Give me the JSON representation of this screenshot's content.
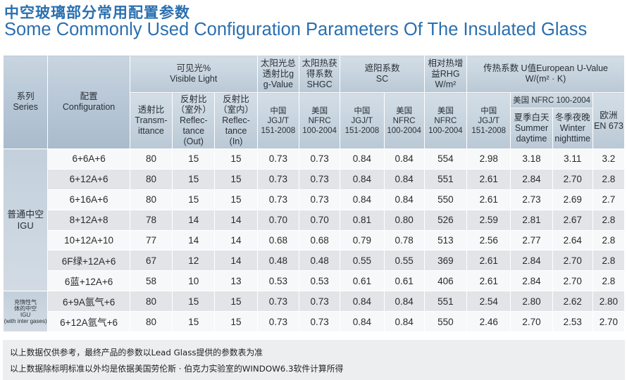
{
  "title_cn": "中空玻璃部分常用配置参数",
  "title_en": "Some Commonly Used Configuration Parameters Of The Insulated Glass",
  "header": {
    "series": [
      "系列",
      "Series"
    ],
    "configuration": [
      "配置",
      "Configuration"
    ],
    "visible_light": [
      "可见光%",
      "Visible Light"
    ],
    "solar_total": [
      "太阳光总",
      "透射比g",
      "g-Value"
    ],
    "solar_heat": [
      "太阳热获",
      "得系数",
      "SHGC"
    ],
    "shading": [
      "遮阳系数",
      "SC"
    ],
    "rhg": [
      "相对热增",
      "益RHG",
      "W/m²"
    ],
    "u_value": [
      "传热系数 U值European U-Value",
      "W/(m² · K)"
    ],
    "transmittance": [
      "透射比",
      "Transm-",
      "ittance"
    ],
    "reflectance_out": [
      "反射比",
      "（室外）",
      "Reflec-",
      "tance",
      "(Out)"
    ],
    "reflectance_in": [
      "反射比",
      "（室内）",
      "Reflec-",
      "tance",
      "(In)"
    ],
    "china_std": [
      "中国",
      "JGJ/T",
      "151-2008"
    ],
    "usa_std": [
      "美国",
      "NFRC",
      "100-2004"
    ],
    "nfrc_group": "美国 NFRC 100-2004",
    "summer": [
      "夏季白天",
      "Summer",
      "daytime"
    ],
    "winter": [
      "冬季夜晚",
      "Winter",
      "nighttime"
    ],
    "europe": [
      "欧洲",
      "EN 673"
    ]
  },
  "groups": {
    "igu": [
      "普通中空",
      "IGU"
    ],
    "gas": [
      "充惰性气",
      "体的中空",
      "IGU",
      "(with inter gases)"
    ]
  },
  "rows": [
    {
      "config": "6+6A+6",
      "vals": [
        "80",
        "15",
        "15",
        "0.73",
        "0.73",
        "0.84",
        "0.84",
        "554",
        "2.98",
        "3.18",
        "3.11",
        "3.2"
      ]
    },
    {
      "config": "6+12A+6",
      "vals": [
        "80",
        "15",
        "15",
        "0.73",
        "0.73",
        "0.84",
        "0.84",
        "551",
        "2.61",
        "2.84",
        "2.70",
        "2.8"
      ]
    },
    {
      "config": "6+16A+6",
      "vals": [
        "80",
        "15",
        "15",
        "0.73",
        "0.73",
        "0.84",
        "0.84",
        "550",
        "2.61",
        "2.73",
        "2.69",
        "2.7"
      ]
    },
    {
      "config": "8+12A+8",
      "vals": [
        "78",
        "14",
        "14",
        "0.70",
        "0.70",
        "0.81",
        "0.80",
        "526",
        "2.59",
        "2.81",
        "2.67",
        "2.8"
      ]
    },
    {
      "config": "10+12A+10",
      "vals": [
        "77",
        "14",
        "14",
        "0.68",
        "0.68",
        "0.79",
        "0.78",
        "513",
        "2.56",
        "2.77",
        "2.64",
        "2.8"
      ]
    },
    {
      "config": "6F绿+12A+6",
      "vals": [
        "67",
        "12",
        "14",
        "0.48",
        "0.48",
        "0.55",
        "0.55",
        "369",
        "2.61",
        "2.84",
        "2.70",
        "2.8"
      ]
    },
    {
      "config": "6蓝+12A+6",
      "vals": [
        "58",
        "10",
        "13",
        "0.53",
        "0.53",
        "0.61",
        "0.61",
        "406",
        "2.61",
        "2.84",
        "2.70",
        "2.8"
      ]
    },
    {
      "config": "6+9A氩气+6",
      "vals": [
        "80",
        "15",
        "15",
        "0.73",
        "0.73",
        "0.84",
        "0.84",
        "551",
        "2.54",
        "2.80",
        "2.62",
        "2.80"
      ]
    },
    {
      "config": "6+12A氩气+6",
      "vals": [
        "80",
        "15",
        "15",
        "0.73",
        "0.73",
        "0.84",
        "0.84",
        "550",
        "2.46",
        "2.70",
        "2.53",
        "2.70"
      ]
    }
  ],
  "notes": [
    "以上数据仅供参考，最终产品的参数以Lead Glass提供的参数表为准",
    "以上数据除标明标准以外均是依据美国劳伦斯 · 伯克力实验室的WINDOW6.3软件计算所得"
  ],
  "colors": {
    "title": "#2a6fb0",
    "header_bg": "#c6d3de",
    "row_light": "#f7f8f9",
    "row_dark": "#e2e4e7"
  }
}
